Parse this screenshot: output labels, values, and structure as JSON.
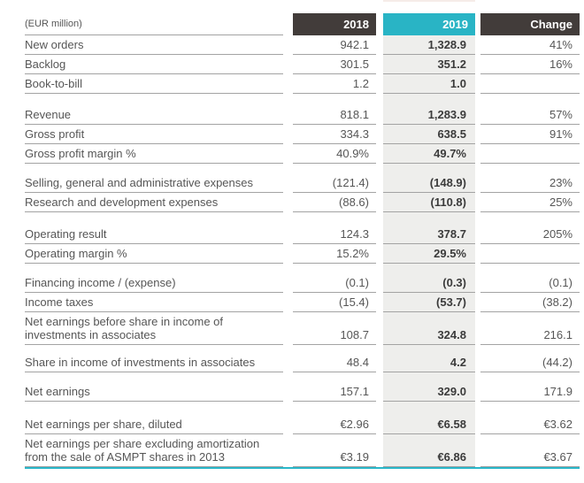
{
  "table": {
    "unit_label": "(EUR million)",
    "columns": [
      "2018",
      "2019",
      "Change"
    ],
    "rows": [
      {
        "label": "New orders",
        "y2018": "942.1",
        "y2019": "1,328.9",
        "change": "41%"
      },
      {
        "label": "Backlog",
        "y2018": "301.5",
        "y2019": "351.2",
        "change": "16%"
      },
      {
        "label": "Book-to-bill",
        "y2018": "1.2",
        "y2019": "1.0",
        "change": ""
      },
      {
        "label": "Revenue",
        "y2018": "818.1",
        "y2019": "1,283.9",
        "change": "57%"
      },
      {
        "label": "Gross profit",
        "y2018": "334.3",
        "y2019": "638.5",
        "change": "91%"
      },
      {
        "label": "Gross profit margin %",
        "y2018": "40.9%",
        "y2019": "49.7%",
        "change": ""
      },
      {
        "label": "Selling, general and administrative expenses",
        "y2018": "(121.4)",
        "y2019": "(148.9)",
        "change": "23%"
      },
      {
        "label": "Research and development expenses",
        "y2018": "(88.6)",
        "y2019": "(110.8)",
        "change": "25%"
      },
      {
        "label": "Operating result",
        "y2018": "124.3",
        "y2019": "378.7",
        "change": "205%"
      },
      {
        "label": "Operating margin %",
        "y2018": "15.2%",
        "y2019": "29.5%",
        "change": ""
      },
      {
        "label": "Financing income / (expense)",
        "y2018": "(0.1)",
        "y2019": "(0.3)",
        "change": "(0.1)"
      },
      {
        "label": "Income taxes",
        "y2018": "(15.4)",
        "y2019": "(53.7)",
        "change": "(38.2)"
      },
      {
        "label": "Net earnings before share in income of investments in associates",
        "y2018": "108.7",
        "y2019": "324.8",
        "change": "216.1"
      },
      {
        "label": "Share in income of investments in associates",
        "y2018": "48.4",
        "y2019": "4.2",
        "change": "(44.2)"
      },
      {
        "label": "Net earnings",
        "y2018": "157.1",
        "y2019": "329.0",
        "change": "171.9"
      },
      {
        "label": "Net earnings per share, diluted",
        "y2018": "€2.96",
        "y2019": "€6.58",
        "change": "€3.62"
      },
      {
        "label": "Net earnings per share excluding amortization from the sale of ASMPT shares in 2013",
        "y2018": "€3.19",
        "y2019": "€6.86",
        "change": "€3.67"
      }
    ]
  },
  "colors": {
    "header_dark": "#423c3a",
    "header_cyan": "#29b4c5",
    "column_highlight_bg": "#eeeeec",
    "row_line": "#a3a3a3",
    "bottom_rule_cyan": "#29b7c9"
  }
}
